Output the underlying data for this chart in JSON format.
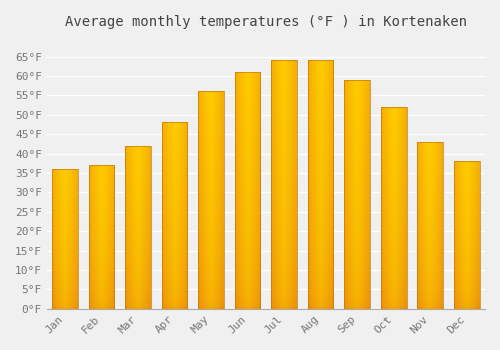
{
  "title": "Average monthly temperatures (°F ) in Kortenaken",
  "months": [
    "Jan",
    "Feb",
    "Mar",
    "Apr",
    "May",
    "Jun",
    "Jul",
    "Aug",
    "Sep",
    "Oct",
    "Nov",
    "Dec"
  ],
  "values": [
    36,
    37,
    42,
    48,
    56,
    61,
    64,
    64,
    59,
    52,
    43,
    38
  ],
  "bar_color_bright": "#FFCC00",
  "bar_color_dark": "#E8860A",
  "bar_edge_color": "#C8780A",
  "ylim": [
    0,
    70
  ],
  "yticks": [
    0,
    5,
    10,
    15,
    20,
    25,
    30,
    35,
    40,
    45,
    50,
    55,
    60,
    65
  ],
  "ytick_labels": [
    "0°F",
    "5°F",
    "10°F",
    "15°F",
    "20°F",
    "25°F",
    "30°F",
    "35°F",
    "40°F",
    "45°F",
    "50°F",
    "55°F",
    "60°F",
    "65°F"
  ],
  "background_color": "#f0f0f0",
  "grid_color": "#ffffff",
  "title_fontsize": 10,
  "tick_fontsize": 8,
  "bar_width": 0.7,
  "figsize": [
    5.0,
    3.5
  ],
  "dpi": 100
}
